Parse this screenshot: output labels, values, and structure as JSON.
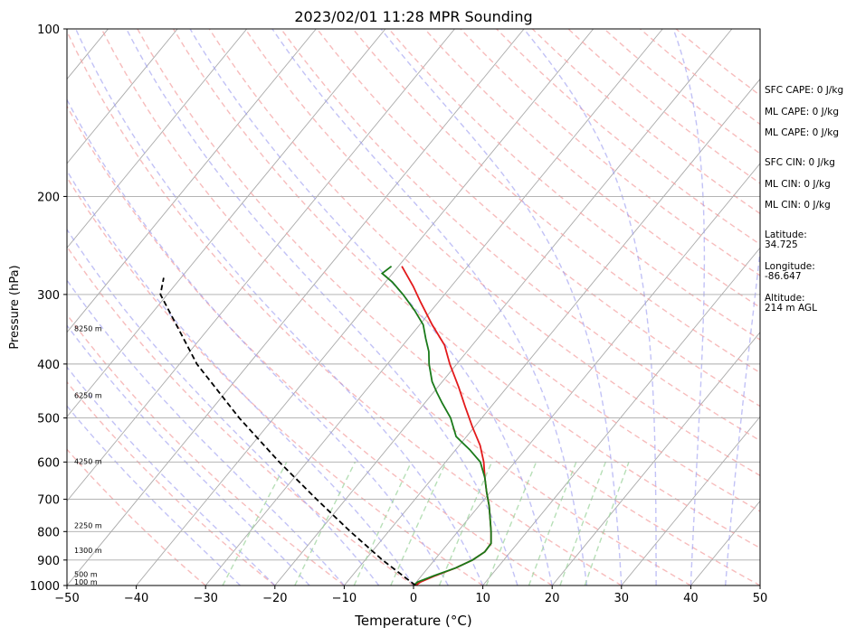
{
  "chart_data": {
    "type": "line",
    "title": "2023/02/01 11:28 MPR Sounding",
    "xlabel": "Temperature (°C)",
    "ylabel": "Pressure (hPa)",
    "xlim": [
      -50,
      50
    ],
    "ylim": [
      1000,
      100
    ],
    "y_scale": "log",
    "skew": true,
    "grid": true,
    "x_ticks": [
      -50,
      -40,
      -30,
      -20,
      -10,
      0,
      10,
      20,
      30,
      40,
      50
    ],
    "x_tick_labels": [
      "−50",
      "−40",
      "−30",
      "−20",
      "−10",
      "0",
      "10",
      "20",
      "30",
      "40",
      "50"
    ],
    "y_ticks": [
      1000,
      900,
      800,
      700,
      600,
      500,
      400,
      300,
      200,
      100
    ],
    "y_tick_labels": [
      "1000",
      "900",
      "800",
      "700",
      "600",
      "500",
      "400",
      "300",
      "200",
      "100"
    ],
    "height_labels": [
      {
        "p": 985,
        "label": "100 m"
      },
      {
        "p": 955,
        "label": "500 m"
      },
      {
        "p": 865,
        "label": "1300 m"
      },
      {
        "p": 780,
        "label": "2250 m"
      },
      {
        "p": 598,
        "label": "4250 m"
      },
      {
        "p": 455,
        "label": "6250 m"
      },
      {
        "p": 345,
        "label": "8250 m"
      }
    ],
    "series": [
      {
        "key": "temperature",
        "color": "#e31a1c",
        "points": [
          {
            "p": 1000,
            "t": 0.3
          },
          {
            "p": 985,
            "t": 0.6
          },
          {
            "p": 960,
            "t": 2.0
          },
          {
            "p": 930,
            "t": 4.0
          },
          {
            "p": 900,
            "t": 5.5
          },
          {
            "p": 870,
            "t": 6.3
          },
          {
            "p": 840,
            "t": 6.2
          },
          {
            "p": 800,
            "t": 4.8
          },
          {
            "p": 760,
            "t": 3.2
          },
          {
            "p": 720,
            "t": 1.5
          },
          {
            "p": 680,
            "t": -0.5
          },
          {
            "p": 640,
            "t": -2.5
          },
          {
            "p": 600,
            "t": -4.5
          },
          {
            "p": 560,
            "t": -7.0
          },
          {
            "p": 520,
            "t": -10.2
          },
          {
            "p": 480,
            "t": -13.5
          },
          {
            "p": 440,
            "t": -17.0
          },
          {
            "p": 400,
            "t": -21.0
          },
          {
            "p": 370,
            "t": -24.0
          },
          {
            "p": 340,
            "t": -28.2
          },
          {
            "p": 310,
            "t": -32.5
          },
          {
            "p": 290,
            "t": -35.5
          },
          {
            "p": 267,
            "t": -39.5
          }
        ]
      },
      {
        "key": "dewpoint",
        "color": "#1a7a1a",
        "points": [
          {
            "p": 1000,
            "t": 0.0
          },
          {
            "p": 985,
            "t": 0.2
          },
          {
            "p": 960,
            "t": 1.8
          },
          {
            "p": 930,
            "t": 4.0
          },
          {
            "p": 900,
            "t": 5.5
          },
          {
            "p": 870,
            "t": 6.3
          },
          {
            "p": 840,
            "t": 6.2
          },
          {
            "p": 800,
            "t": 4.8
          },
          {
            "p": 760,
            "t": 3.2
          },
          {
            "p": 720,
            "t": 1.5
          },
          {
            "p": 680,
            "t": -0.5
          },
          {
            "p": 640,
            "t": -2.5
          },
          {
            "p": 600,
            "t": -5.0
          },
          {
            "p": 570,
            "t": -8.0
          },
          {
            "p": 540,
            "t": -11.5
          },
          {
            "p": 500,
            "t": -14.5
          },
          {
            "p": 470,
            "t": -17.5
          },
          {
            "p": 450,
            "t": -19.5
          },
          {
            "p": 430,
            "t": -21.5
          },
          {
            "p": 400,
            "t": -24.0
          },
          {
            "p": 380,
            "t": -25.5
          },
          {
            "p": 360,
            "t": -27.5
          },
          {
            "p": 340,
            "t": -29.5
          },
          {
            "p": 320,
            "t": -32.5
          },
          {
            "p": 300,
            "t": -36.0
          },
          {
            "p": 285,
            "t": -39.0
          },
          {
            "p": 275,
            "t": -41.5
          },
          {
            "p": 267,
            "t": -41.0
          }
        ]
      },
      {
        "key": "parcel",
        "color": "#000000",
        "dashed": true,
        "points": [
          {
            "p": 1000,
            "t": 0.3
          },
          {
            "p": 900,
            "t": -7.5
          },
          {
            "p": 800,
            "t": -15.5
          },
          {
            "p": 700,
            "t": -24.2
          },
          {
            "p": 600,
            "t": -34.0
          },
          {
            "p": 500,
            "t": -45.0
          },
          {
            "p": 400,
            "t": -57.5
          },
          {
            "p": 300,
            "t": -71.0
          },
          {
            "p": 280,
            "t": -72.5
          }
        ]
      }
    ]
  },
  "indices": [
    "SFC CAPE: 0 J/kg",
    "ML CAPE: 0 J/kg",
    "ML CAPE: 0 J/kg",
    "SFC CIN: 0 J/kg",
    "ML CIN: 0 J/kg",
    "ML CIN: 0 J/kg"
  ],
  "location": {
    "latitude_label": "Latitude:",
    "latitude": "34.725",
    "longitude_label": "Longitude:",
    "longitude": "-86.647",
    "altitude_label": "Altitude:",
    "altitude": "214 m AGL"
  }
}
